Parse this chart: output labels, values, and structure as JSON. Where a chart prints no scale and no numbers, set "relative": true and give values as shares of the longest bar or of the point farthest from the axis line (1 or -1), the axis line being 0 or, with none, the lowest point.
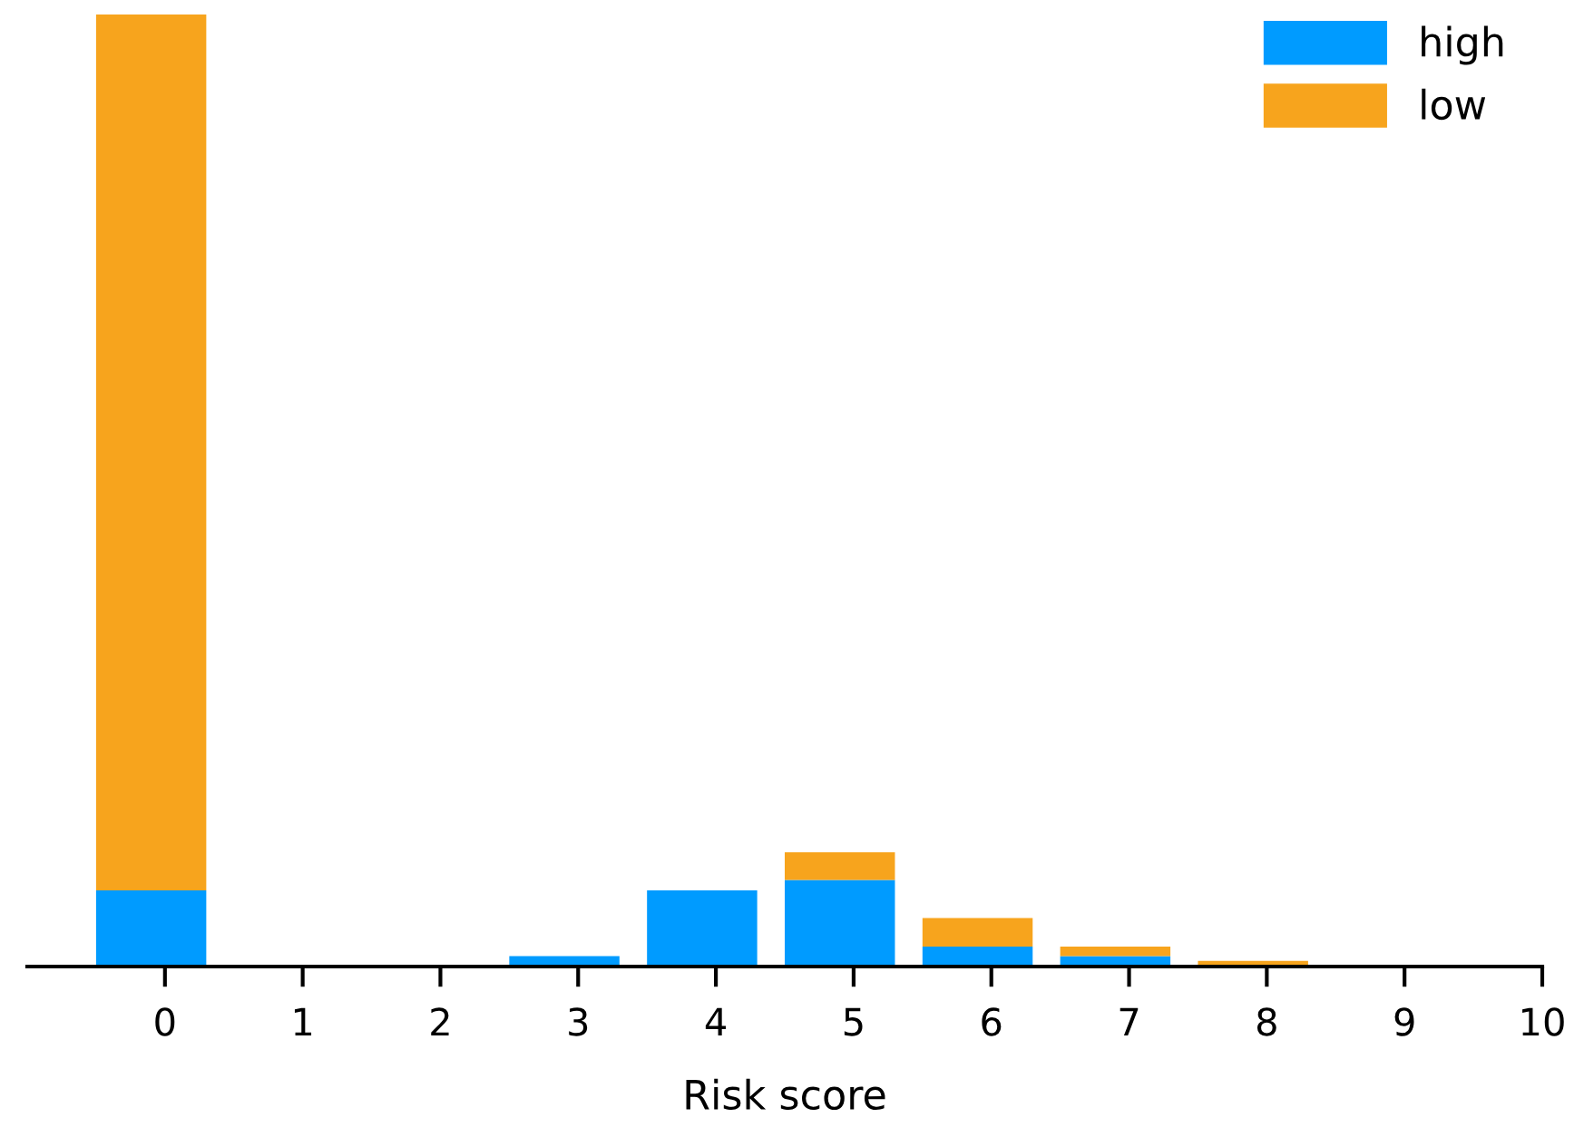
{
  "chart_data": {
    "type": "bar",
    "stacked": true,
    "relative": true,
    "xlabel": "Risk score",
    "x": [
      -0.1,
      0.9,
      1.9,
      2.9,
      3.9,
      4.9,
      5.9,
      6.9,
      7.9
    ],
    "xlim": [
      -1,
      10
    ],
    "xticks": [
      0,
      1,
      2,
      3,
      4,
      5,
      6,
      7,
      8,
      9,
      10
    ],
    "series": [
      {
        "name": "high",
        "color": "#009bff",
        "values": [
          0.08,
          0,
          0,
          0.011,
          0.08,
          0.091,
          0.021,
          0.011,
          0
        ]
      },
      {
        "name": "low",
        "color": "#f7a41d",
        "values": [
          0.92,
          0,
          0,
          0,
          0,
          0.029,
          0.03,
          0.01,
          0.006
        ]
      }
    ],
    "legend": "top right",
    "grid": false
  }
}
